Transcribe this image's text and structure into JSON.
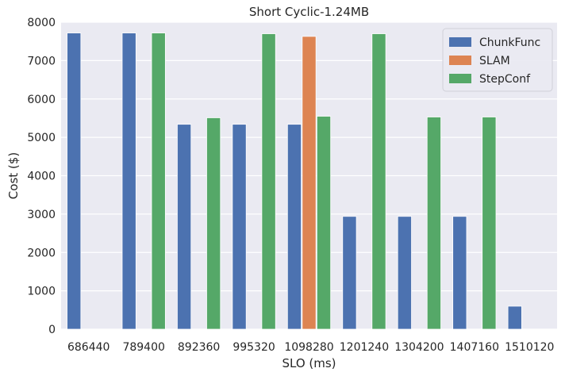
{
  "chart_data": {
    "type": "bar",
    "title": "Short Cyclic-1.24MB",
    "xlabel": "SLO (ms)",
    "ylabel": "Cost ($)",
    "categories": [
      "686440",
      "789400",
      "892360",
      "995320",
      "1098280",
      "1201240",
      "1304200",
      "1407160",
      "1510120"
    ],
    "series": [
      {
        "name": "ChunkFunc",
        "color": "#4c72b0",
        "values": [
          7720,
          7720,
          5340,
          5340,
          5340,
          2940,
          2940,
          2940,
          600
        ]
      },
      {
        "name": "SLAM",
        "color": "#dd8452",
        "values": [
          null,
          null,
          null,
          null,
          7630,
          null,
          null,
          null,
          null
        ]
      },
      {
        "name": "StepConf",
        "color": "#55a868",
        "values": [
          null,
          7720,
          5510,
          7700,
          5550,
          7700,
          5530,
          5530,
          null
        ]
      }
    ],
    "ylim": [
      0,
      8000
    ],
    "yticks": [
      0,
      1000,
      2000,
      3000,
      4000,
      5000,
      6000,
      7000,
      8000
    ],
    "grid": true,
    "legend_position": "top-right",
    "background": "#eaeaf2"
  }
}
